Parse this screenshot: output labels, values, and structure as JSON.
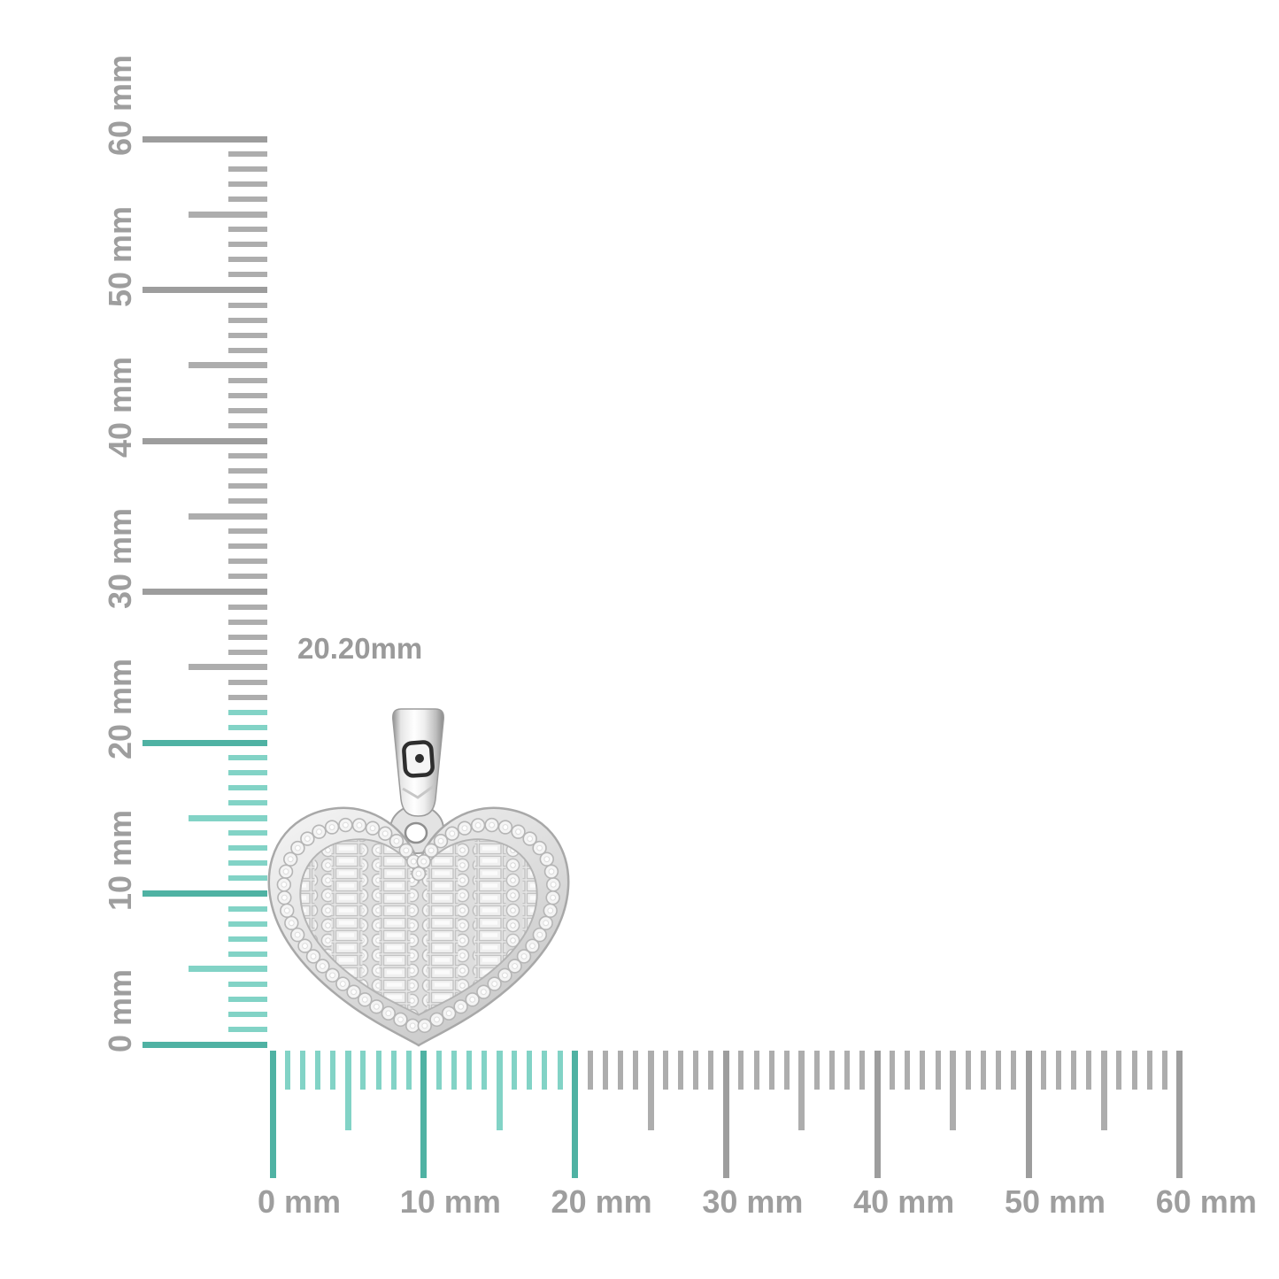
{
  "annotation": {
    "measurement_text": "20.20mm"
  },
  "colors": {
    "background": "#ffffff",
    "tick_gray_minor": "#adadad",
    "tick_gray_major": "#9d9d9d",
    "tick_teal_minor": "#82d3c6",
    "tick_teal_major": "#4fb2a3",
    "ruler_label": "#9e9e9e",
    "annotation_text": "#9a9a9a"
  },
  "vertical_ruler": {
    "unit": "mm",
    "min_mm": 0,
    "max_mm": 60,
    "minor_step_mm": 1,
    "medium_step_mm": 5,
    "major_step_mm": 10,
    "highlight_up_to_mm": 22,
    "labels": [
      "0 mm",
      "10 mm",
      "20 mm",
      "30 mm",
      "40 mm",
      "50 mm",
      "60 mm"
    ]
  },
  "horizontal_ruler": {
    "unit": "mm",
    "min_mm": 0,
    "max_mm": 60,
    "minor_step_mm": 1,
    "medium_step_mm": 5,
    "major_step_mm": 10,
    "highlight_up_to_mm": 20,
    "labels": [
      "0 mm",
      "10 mm",
      "20 mm",
      "30 mm",
      "40 mm",
      "50 mm",
      "60 mm"
    ]
  }
}
